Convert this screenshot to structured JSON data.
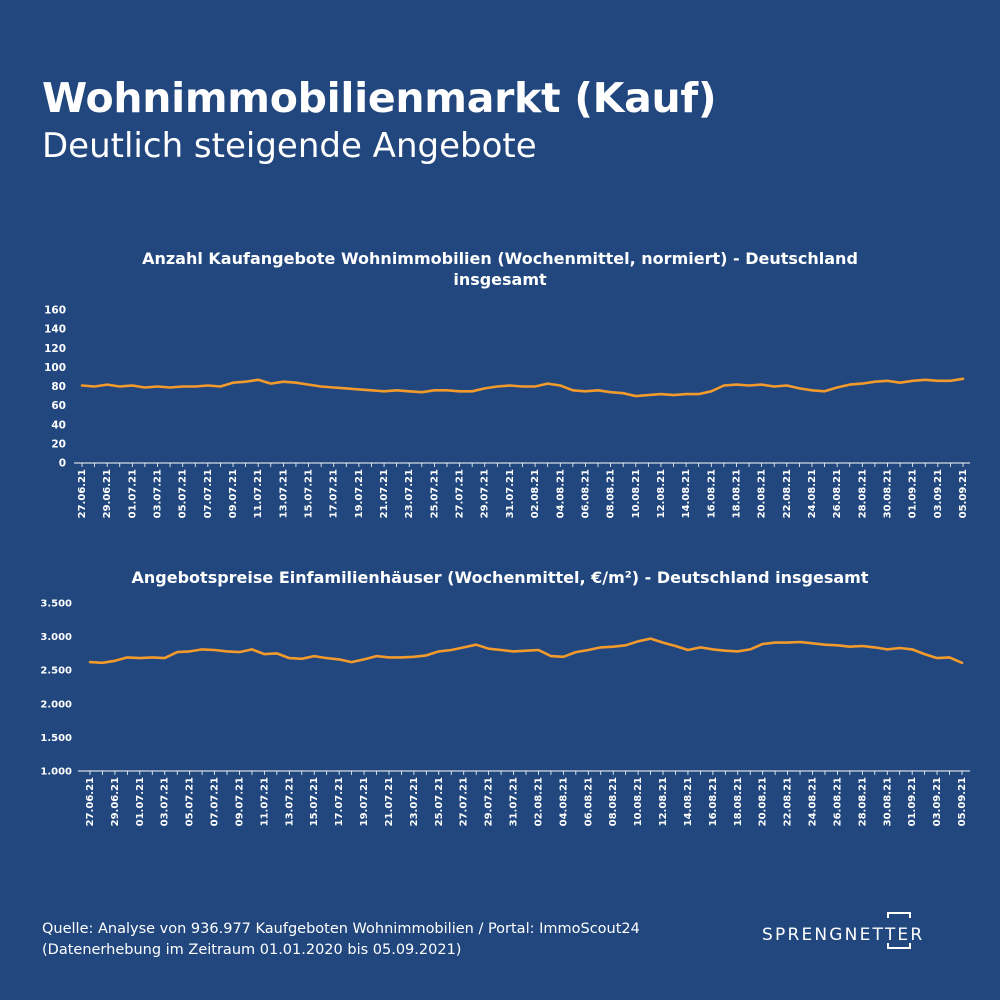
{
  "header": {
    "title": "Wohnimmobilienmarkt (Kauf)",
    "subtitle": "Deutlich steigende Angebote"
  },
  "footer": {
    "source_line1": "Quelle: Analyse von 936.977 Kaufgeboten Wohnimmobilien / Portal: ImmoScout24",
    "source_line2": "(Datenerhebung im Zeitraum  01.01.2020 bis  05.09.2021)"
  },
  "logo": {
    "text": "SPRENGNETTER"
  },
  "colors": {
    "background": "#21477e",
    "line": "#f39a2c",
    "text": "#ffffff"
  },
  "chart_data": [
    {
      "type": "line",
      "title": "Anzahl Kaufangebote Wohnimmobilien (Wochenmittel, normiert) - Deutschland",
      "title_line2": "insgesamt",
      "ylim": [
        0,
        160
      ],
      "yticks": [
        "0",
        "20",
        "40",
        "60",
        "80",
        "100",
        "120",
        "140",
        "160"
      ],
      "x_tick_labels": [
        "27.06.21",
        "29.06.21",
        "01.07.21",
        "03.07.21",
        "05.07.21",
        "07.07.21",
        "09.07.21",
        "11.07.21",
        "13.07.21",
        "15.07.21",
        "17.07.21",
        "19.07.21",
        "21.07.21",
        "23.07.21",
        "25.07.21",
        "27.07.21",
        "29.07.21",
        "31.07.21",
        "02.08.21",
        "04.08.21",
        "06.08.21",
        "08.08.21",
        "10.08.21",
        "12.08.21",
        "14.08.21",
        "16.08.21",
        "18.08.21",
        "20.08.21",
        "22.08.21",
        "24.08.21",
        "26.08.21",
        "28.08.21",
        "30.08.21",
        "01.09.21",
        "03.09.21",
        "05.09.21"
      ],
      "series": [
        {
          "values": [
            81,
            80,
            82,
            80,
            81,
            79,
            80,
            79,
            80,
            80,
            81,
            80,
            84,
            85,
            87,
            83,
            85,
            84,
            82,
            80,
            79,
            78,
            77,
            76,
            75,
            76,
            75,
            74,
            76,
            76,
            75,
            75,
            78,
            80,
            81,
            80,
            80,
            83,
            81,
            76,
            75,
            76,
            74,
            73,
            70,
            71,
            72,
            71,
            72,
            72,
            75,
            81,
            82,
            81,
            82,
            80,
            81,
            78,
            76,
            75,
            79,
            82,
            83,
            85,
            86,
            84,
            86,
            87,
            86,
            86,
            88
          ]
        }
      ]
    },
    {
      "type": "line",
      "title": "Angebotspreise Einfamilienhäuser (Wochenmittel, €/m²) - Deutschland insgesamt",
      "ylim": [
        1000,
        3500
      ],
      "yticks": [
        "1.000",
        "1.500",
        "2.000",
        "2.500",
        "3.000",
        "3.500"
      ],
      "x_tick_labels": [
        "27.06.21",
        "29.06.21",
        "01.07.21",
        "03.07.21",
        "05.07.21",
        "07.07.21",
        "09.07.21",
        "11.07.21",
        "13.07.21",
        "15.07.21",
        "17.07.21",
        "19.07.21",
        "21.07.21",
        "23.07.21",
        "25.07.21",
        "27.07.21",
        "29.07.21",
        "31.07.21",
        "02.08.21",
        "04.08.21",
        "06.08.21",
        "08.08.21",
        "10.08.21",
        "12.08.21",
        "14.08.21",
        "16.08.21",
        "18.08.21",
        "20.08.21",
        "22.08.21",
        "24.08.21",
        "26.08.21",
        "28.08.21",
        "30.08.21",
        "01.09.21",
        "03.09.21",
        "05.09.21"
      ],
      "series": [
        {
          "values": [
            2620,
            2610,
            2640,
            2690,
            2680,
            2690,
            2680,
            2770,
            2780,
            2810,
            2800,
            2780,
            2770,
            2810,
            2740,
            2750,
            2680,
            2670,
            2710,
            2680,
            2660,
            2620,
            2660,
            2710,
            2690,
            2690,
            2700,
            2720,
            2780,
            2800,
            2840,
            2880,
            2820,
            2800,
            2780,
            2790,
            2800,
            2710,
            2700,
            2770,
            2800,
            2840,
            2850,
            2870,
            2930,
            2970,
            2910,
            2860,
            2800,
            2840,
            2810,
            2790,
            2780,
            2810,
            2890,
            2910,
            2910,
            2920,
            2900,
            2880,
            2870,
            2850,
            2860,
            2840,
            2810,
            2830,
            2810,
            2740,
            2680,
            2690,
            2610
          ]
        }
      ]
    }
  ]
}
